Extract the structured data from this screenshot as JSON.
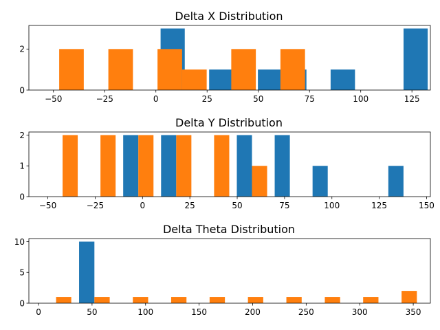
{
  "colors": {
    "series_a": "#1f77b4",
    "series_b": "#ff7f0e"
  },
  "chart_data": [
    {
      "type": "bar",
      "title": "Delta X Distribution",
      "xlabel": "",
      "ylabel": "",
      "xlim": [
        -62,
        134
      ],
      "ylim": [
        0,
        3.15
      ],
      "xticks": [
        -50,
        -25,
        0,
        25,
        50,
        75,
        100,
        125
      ],
      "yticks": [
        0,
        2
      ],
      "series": [
        {
          "color": "#1f77b4",
          "bars": [
            {
              "x0": 2.3,
              "x1": 14.1,
              "value": 3
            },
            {
              "x0": 26.0,
              "x1": 37.8,
              "value": 1
            },
            {
              "x0": 49.8,
              "x1": 61.6,
              "value": 1
            },
            {
              "x0": 61.6,
              "x1": 73.5,
              "value": 1
            },
            {
              "x0": 85.3,
              "x1": 97.2,
              "value": 1
            },
            {
              "x0": 120.9,
              "x1": 132.7,
              "value": 3
            }
          ]
        },
        {
          "color": "#ff7f0e",
          "bars": [
            {
              "x0": -47.2,
              "x1": -35.2,
              "value": 2
            },
            {
              "x0": -23.2,
              "x1": -11.2,
              "value": 2
            },
            {
              "x0": 0.8,
              "x1": 12.8,
              "value": 2
            },
            {
              "x0": 12.8,
              "x1": 24.8,
              "value": 1
            },
            {
              "x0": 36.8,
              "x1": 48.8,
              "value": 2
            },
            {
              "x0": 60.8,
              "x1": 72.8,
              "value": 2
            }
          ]
        }
      ]
    },
    {
      "type": "bar",
      "title": "Delta Y Distribution",
      "xlabel": "",
      "ylabel": "",
      "xlim": [
        -60,
        152
      ],
      "ylim": [
        0,
        2.1
      ],
      "xticks": [
        -50,
        -25,
        0,
        25,
        50,
        75,
        100,
        125,
        150
      ],
      "yticks": [
        0,
        1,
        2
      ],
      "series": [
        {
          "color": "#1f77b4",
          "bars": [
            {
              "x0": -10.2,
              "x1": -2.2,
              "value": 2
            },
            {
              "x0": 9.8,
              "x1": 17.8,
              "value": 2
            },
            {
              "x0": 49.8,
              "x1": 57.8,
              "value": 2
            },
            {
              "x0": 69.8,
              "x1": 77.8,
              "value": 2
            },
            {
              "x0": 89.8,
              "x1": 97.8,
              "value": 1
            },
            {
              "x0": 129.8,
              "x1": 137.8,
              "value": 1
            }
          ]
        },
        {
          "color": "#ff7f0e",
          "bars": [
            {
              "x0": -42.2,
              "x1": -34.2,
              "value": 2
            },
            {
              "x0": -22.2,
              "x1": -14.2,
              "value": 2
            },
            {
              "x0": -2.2,
              "x1": 5.8,
              "value": 2
            },
            {
              "x0": 17.8,
              "x1": 25.8,
              "value": 2
            },
            {
              "x0": 37.8,
              "x1": 45.8,
              "value": 2
            },
            {
              "x0": 57.8,
              "x1": 65.8,
              "value": 1
            }
          ]
        }
      ]
    },
    {
      "type": "bar",
      "title": "Delta Theta Distribution",
      "xlabel": "",
      "ylabel": "",
      "xlim": [
        -9,
        366
      ],
      "ylim": [
        0,
        10.5
      ],
      "xticks": [
        0,
        50,
        100,
        150,
        200,
        250,
        300,
        350
      ],
      "yticks": [
        0,
        5,
        10
      ],
      "series": [
        {
          "color": "#1f77b4",
          "bars": [
            {
              "x0": 37.9,
              "x1": 52.2,
              "value": 10
            }
          ]
        },
        {
          "color": "#ff7f0e",
          "bars": [
            {
              "x0": 16.4,
              "x1": 30.6,
              "value": 1
            },
            {
              "x0": 52.2,
              "x1": 66.5,
              "value": 1
            },
            {
              "x0": 88.1,
              "x1": 102.4,
              "value": 1
            },
            {
              "x0": 123.9,
              "x1": 138.2,
              "value": 1
            },
            {
              "x0": 159.8,
              "x1": 174.1,
              "value": 1
            },
            {
              "x0": 195.6,
              "x1": 209.9,
              "value": 1
            },
            {
              "x0": 231.5,
              "x1": 245.8,
              "value": 1
            },
            {
              "x0": 267.4,
              "x1": 281.7,
              "value": 1
            },
            {
              "x0": 303.2,
              "x1": 317.5,
              "value": 1
            },
            {
              "x0": 339.1,
              "x1": 353.4,
              "value": 2
            }
          ]
        }
      ]
    }
  ]
}
